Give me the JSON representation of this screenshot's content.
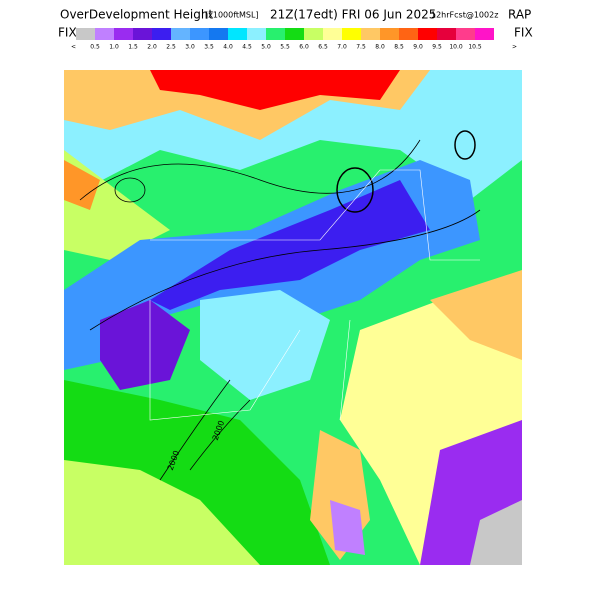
{
  "header": {
    "title": "OverDevelopment Height",
    "units": "[x1000ftMSL]",
    "valid": "21Z(17edt) FRI 06 Jun 2025",
    "forecast": "12hrFcst@1002z",
    "model": "RAP"
  },
  "colorbar": {
    "left_label": "FIX",
    "right_label": "FIX",
    "prev": "<",
    "next": ">",
    "colors": [
      "#c8c8c8",
      "#c080ff",
      "#9a2cf0",
      "#6a14d8",
      "#3c1ef0",
      "#64b4ff",
      "#3c96ff",
      "#1478f0",
      "#00e6ff",
      "#8cf0ff",
      "#28f06e",
      "#14dc14",
      "#c8ff64",
      "#ffff96",
      "#ffff00",
      "#ffc864",
      "#ff9628",
      "#ff6414",
      "#ff0000",
      "#e6003c",
      "#ff3c8c",
      "#ff14c8"
    ],
    "labels": [
      "0.5",
      "1.0",
      "1.5",
      "2.0",
      "2.5",
      "3.0",
      "3.5",
      "4.0",
      "4.5",
      "5.0",
      "5.5",
      "6.0",
      "6.5",
      "7.0",
      "7.5",
      "8.0",
      "8.5",
      "9.0",
      "9.5",
      "10.0",
      "10.5"
    ]
  },
  "map": {
    "contour_labels": [
      "2000",
      "2000"
    ]
  }
}
